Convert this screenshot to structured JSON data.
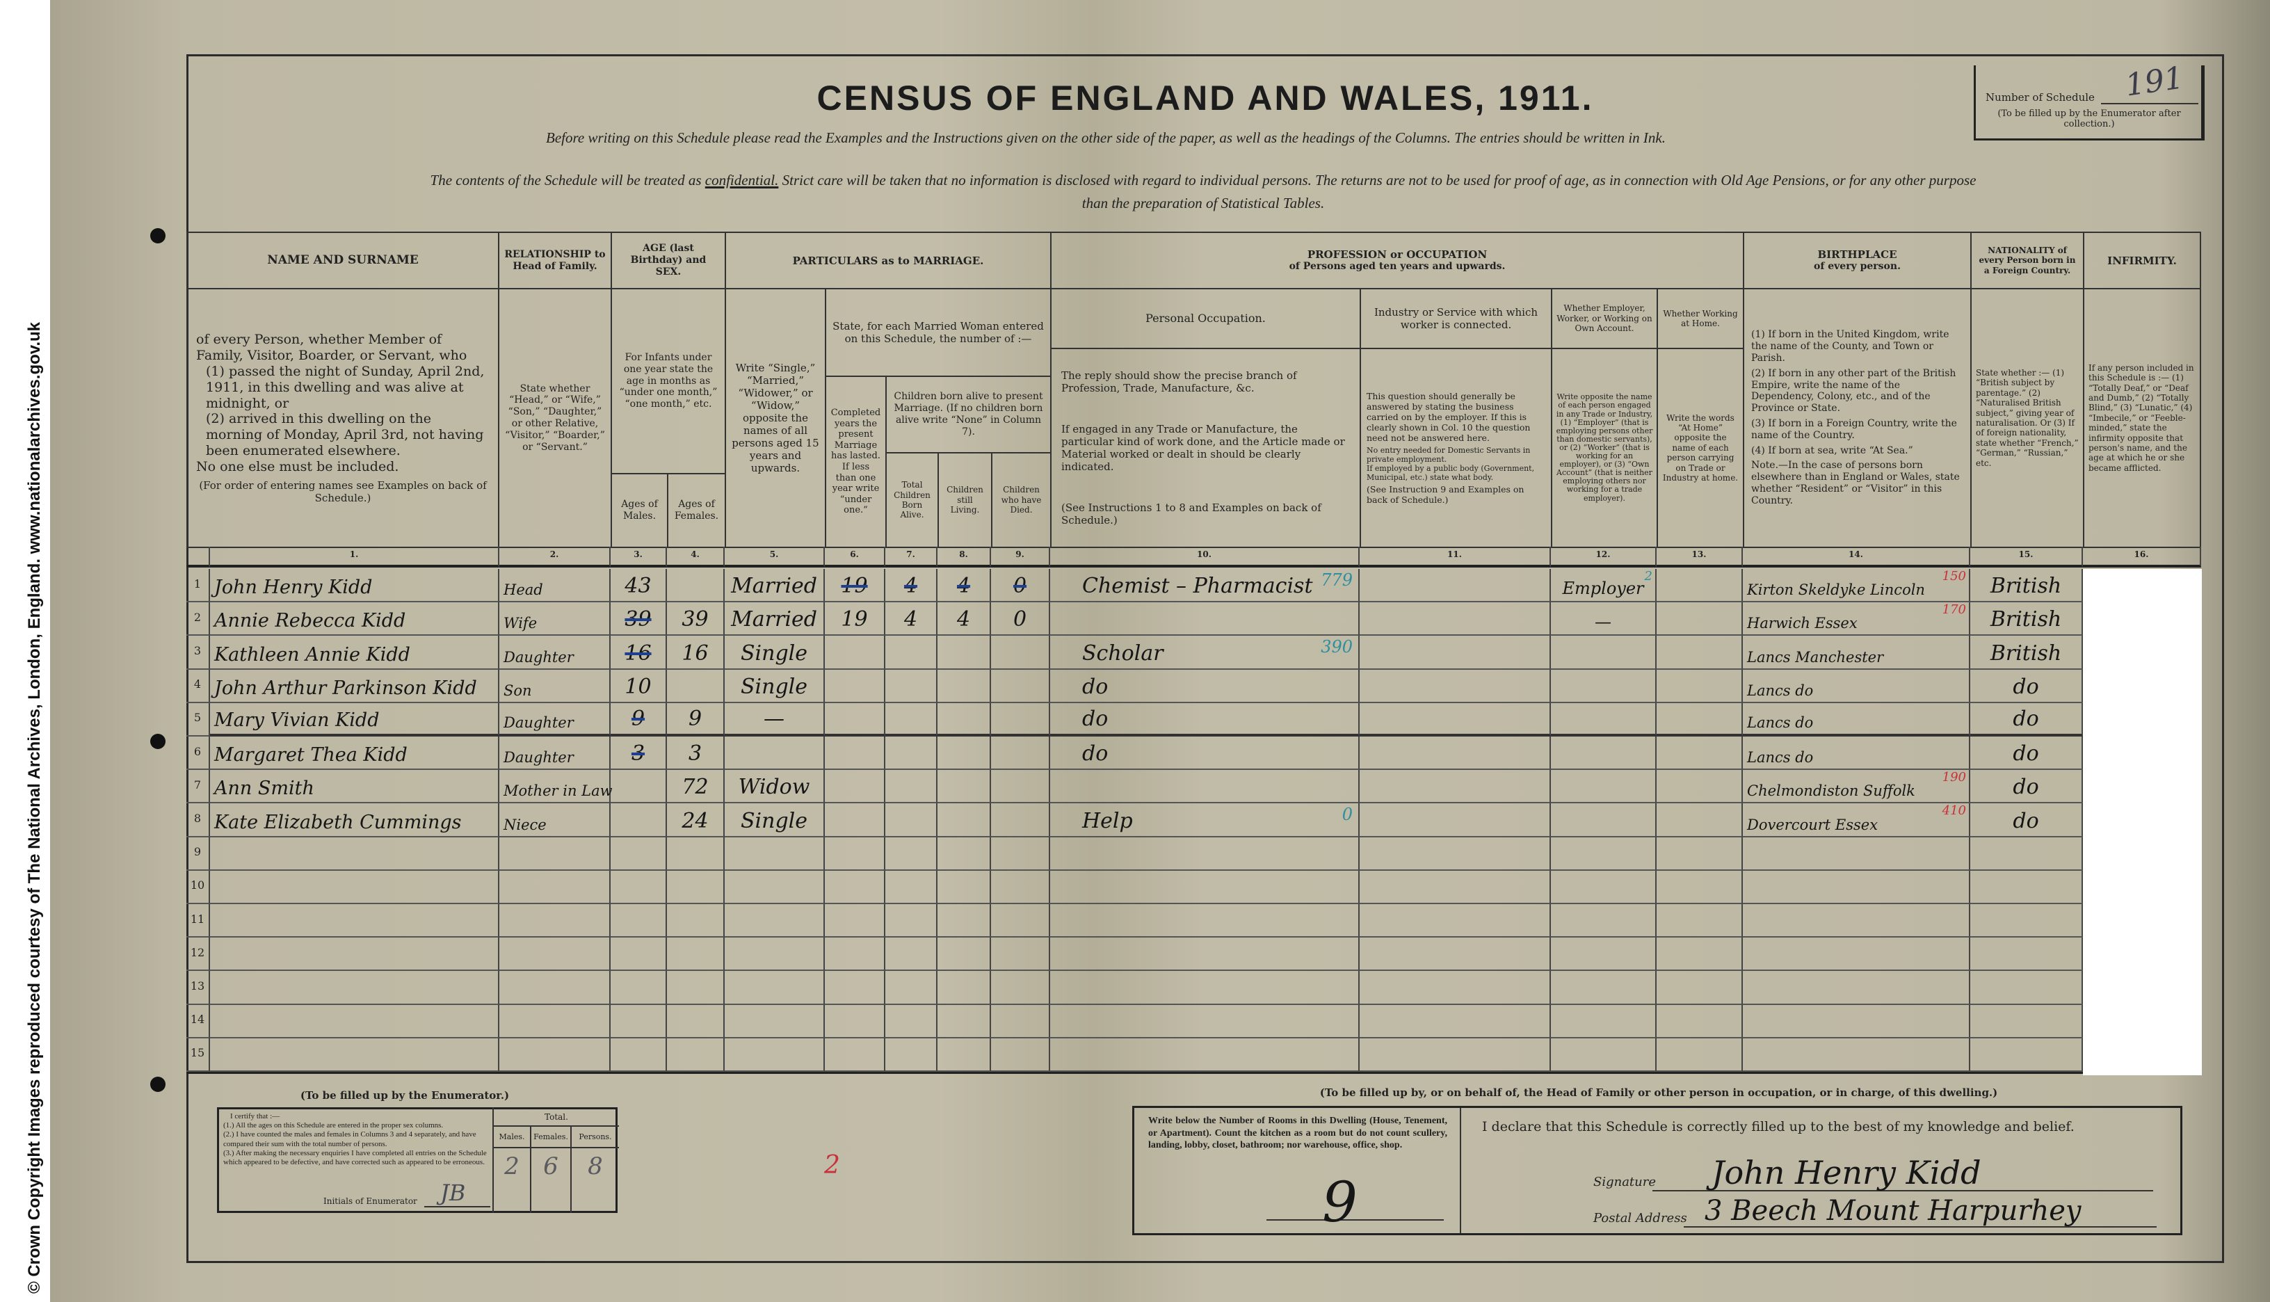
{
  "copyright": "© Crown Copyright Images reproduced courtesy of The National Archives, London, England. www.nationalarchives.gov.uk",
  "title": "CENSUS OF ENGLAND AND WALES, 1911.",
  "instructions": {
    "line1": "Before writing on this Schedule please read the Examples and the Instructions given on the other side of the paper, as well as the headings of the Columns.  The entries should be written in Ink.",
    "line2_pre": "The contents of the Schedule will be treated as ",
    "line2_underlined": "confidential.",
    "line2_post": "  Strict care will be taken that no information is disclosed with regard to individual persons.  The returns are not to be used for proof of age, as in connection with Old Age Pensions, or for any other purpose",
    "line3": "than the preparation of Statistical Tables."
  },
  "schedule_number": {
    "label": "Number of Schedule",
    "note": "(To be filled up by the Enumerator after collection.)",
    "value": "191"
  },
  "headers": {
    "name": {
      "title": "NAME AND SURNAME",
      "desc1": "of every Person, whether Member of Family, Visitor, Boarder, or Servant, who",
      "desc2": "(1) passed the night of Sunday, April 2nd, 1911, in this dwelling and was alive at midnight, or",
      "desc3": "(2) arrived in this dwelling on the morning of Monday, April 3rd, not having been enumerated elsewhere.",
      "desc4": "No one else must be included.",
      "desc5": "(For order of entering names see Examples on back of Schedule.)"
    },
    "relationship": {
      "title": "RELATIONSHIP to Head of Family.",
      "desc": "State whether “Head,” or “Wife,” “Son,” “Daughter,” or other Relative, “Visitor,” “Boarder,” or “Servant.”"
    },
    "age": {
      "title": "AGE (last Birthday) and SEX.",
      "desc": "For Infants under one year state the age in months as “under one month,” “one month,” etc.",
      "males": "Ages of Males.",
      "females": "Ages of Females."
    },
    "marriage": {
      "title": "PARTICULARS as to MARRIAGE.",
      "condition": "Write “Single,” “Married,” “Widower,” or “Widow,” opposite the names of all persons aged 15 years and upwards.",
      "state": "State, for each Married Woman entered on this Schedule, the number of :—",
      "years": "Completed years the present Marriage has lasted. If less than one year write “under one.”",
      "children": "Children born alive to present Marriage. (If no children born alive write “None” in Column 7).",
      "total": "Total Children Born Alive.",
      "living": "Children still Living.",
      "died": "Children who have Died."
    },
    "occupation": {
      "title": "PROFESSION or OCCUPATION",
      "subtitle": "of Persons aged ten years and upwards.",
      "personal_title": "Personal Occupation.",
      "personal_desc1": "The reply should show the precise branch of Profession, Trade, Manufacture, &c.",
      "personal_desc2": "If engaged in any Trade or Manufacture, the particular kind of work done, and the Article made or Material worked or dealt in should be clearly indicated.",
      "personal_desc3": "(See Instructions 1 to 8 and Examples on back of Schedule.)",
      "industry_title": "Industry or Service with which worker is connected.",
      "industry_desc1": "This question should generally be answered by stating the business carried on by the employer. If this is clearly shown in Col. 10 the question need not be answered here.",
      "industry_desc2": "No entry needed for Domestic Servants in private employment.",
      "industry_desc3": "If employed by a public body (Government, Municipal, etc.) state what body.",
      "industry_desc4": "(See Instruction 9 and Examples on back of Schedule.)",
      "employer_title": "Whether Employer, Worker, or Working on Own Account.",
      "employer_desc": "Write opposite the name of each person engaged in any Trade or Industry, (1) “Employer” (that is employing persons other than domestic servants), or (2) “Worker” (that is working for an employer), or (3) “Own Account” (that is neither employing others nor working for a trade employer).",
      "home_title": "Whether Working at Home.",
      "home_desc": "Write the words “At Home” opposite the name of each person carrying on Trade or Industry at home."
    },
    "birthplace": {
      "title": "BIRTHPLACE",
      "subtitle": "of every person.",
      "desc1": "(1) If born in the United Kingdom, write the name of the County, and Town or Parish.",
      "desc2": "(2) If born in any other part of the British Empire, write the name of the Dependency, Colony, etc., and of the Province or State.",
      "desc3": "(3) If born in a Foreign Country, write the name of the Country.",
      "desc4": "(4) If born at sea, write “At Sea.”",
      "desc5": "Note.—In the case of persons born elsewhere than in England or Wales, state whether “Resident” or “Visitor” in this Country."
    },
    "nationality": {
      "title": "NATIONALITY of every Person born in a Foreign Country.",
      "desc": "State whether :— (1) “British subject by parentage.” (2) “Naturalised British subject,” giving year of naturalisation. Or (3) If of foreign nationality, state whether “French,” “German,” “Russian,” etc."
    },
    "infirmity": {
      "title": "INFIRMITY.",
      "desc": "If any person included in this Schedule is :— (1) “Totally Deaf,” or “Deaf and Dumb,” (2) “Totally Blind,” (3) “Lunatic,” (4) “Imbecile,” or “Feeble-minded,” state the infirmity opposite that person's name, and the age at which he or she became afflicted."
    }
  },
  "column_numbers": [
    "1.",
    "2.",
    "3.",
    "4.",
    "5.",
    "6.",
    "7.",
    "8.",
    "9.",
    "10.",
    "11.",
    "12.",
    "13.",
    "14.",
    "15.",
    "16."
  ],
  "row_numbers": [
    "1",
    "2",
    "3",
    "4",
    "5",
    "6",
    "7",
    "8",
    "9",
    "10",
    "11",
    "12",
    "13",
    "14",
    "15"
  ],
  "rows": [
    {
      "name": "John Henry Kidd",
      "relationship": "Head",
      "age_male": "43",
      "age_female": "",
      "marital": "Married",
      "years_married": "19",
      "children_total": "4",
      "children_living": "4",
      "children_died": "0",
      "struck_marriage": true,
      "occupation": "Chemist – Pharmacist",
      "occupation_code": "779",
      "industry": "",
      "employer": "Employer",
      "employer_code": "2",
      "home": "",
      "birthplace": "Kirton Skeldyke Lincoln",
      "birthplace_code": "150",
      "nationality": "British"
    },
    {
      "name": "Annie Rebecca Kidd",
      "relationship": "Wife",
      "age_male": "39",
      "age_male_struck": true,
      "age_female": "39",
      "marital": "Married",
      "years_married": "19",
      "children_total": "4",
      "children_living": "4",
      "children_died": "0",
      "occupation": "",
      "industry": "",
      "employer": "—",
      "home": "",
      "birthplace": "Harwich Essex",
      "birthplace_code": "170",
      "nationality": "British"
    },
    {
      "name": "Kathleen Annie Kidd",
      "relationship": "Daughter",
      "age_male": "16",
      "age_male_struck": true,
      "age_female": "16",
      "marital": "Single",
      "occupation": "Scholar",
      "occupation_code": "390",
      "industry": "",
      "employer": "",
      "home": "",
      "birthplace": "Lancs Manchester",
      "nationality": "British"
    },
    {
      "name": "John Arthur Parkinson Kidd",
      "relationship": "Son",
      "age_male": "10",
      "age_female": "",
      "marital": "Single",
      "occupation": "do",
      "industry": "",
      "employer": "",
      "home": "",
      "birthplace": "Lancs do",
      "nationality": "do"
    },
    {
      "name": "Mary Vivian Kidd",
      "relationship": "Daughter",
      "age_male": "9",
      "age_male_struck": true,
      "age_female": "9",
      "marital": "—",
      "occupation": "do",
      "industry": "",
      "employer": "",
      "home": "",
      "birthplace": "Lancs do",
      "nationality": "do"
    },
    {
      "name": "Margaret Thea Kidd",
      "relationship": "Daughter",
      "age_male": "3",
      "age_male_struck": true,
      "age_female": "3",
      "marital": "",
      "occupation": "do",
      "industry": "",
      "employer": "",
      "home": "",
      "birthplace": "Lancs do",
      "nationality": "do"
    },
    {
      "name": "Ann Smith",
      "relationship": "Mother in Law",
      "age_male": "",
      "age_female": "72",
      "marital": "Widow",
      "occupation": "",
      "industry": "",
      "employer": "",
      "home": "",
      "birthplace": "Chelmondiston Suffolk",
      "birthplace_code": "190",
      "nationality": "do"
    },
    {
      "name": "Kate Elizabeth Cummings",
      "relationship": "Niece",
      "age_male": "",
      "age_female": "24",
      "marital": "Single",
      "occupation": "Help",
      "occupation_code": "0",
      "industry": "",
      "employer": "",
      "home": "",
      "birthplace": "Dovercourt Essex",
      "birthplace_code": "410",
      "nationality": "do"
    }
  ],
  "enumerator": {
    "caption": "(To be filled up by the Enumerator.)",
    "certify": "I certify that :—",
    "item1": "(1.) All the ages on this Schedule are entered in the proper sex columns.",
    "item2": "(2.) I have counted the males and females in Columns 3 and 4 separately, and have compared their sum with the total number of persons.",
    "item3": "(3.) After making the necessary enquiries I have completed all entries on the Schedule which appeared to be defective, and have corrected such as appeared to be erroneous.",
    "initials_label": "Initials of Enumerator",
    "initials": "JB",
    "total_label": "Total.",
    "males_label": "Males.",
    "females_label": "Females.",
    "persons_label": "Persons.",
    "males": "2",
    "females": "6",
    "persons": "8",
    "red_mark": "2"
  },
  "householder": {
    "caption": "(To be filled up by, or on behalf of, the Head of Family or other person in occupation, or in charge, of this dwelling.)",
    "rooms_instruction": "Write below the Number of Rooms in this Dwelling (House, Tenement, or Apartment). Count the kitchen as a room but do not count scullery, landing, lobby, closet, bathroom; nor warehouse, office, shop.",
    "rooms": "9",
    "declaration": "I declare that this Schedule is correctly filled up to the best of my knowledge and belief.",
    "signature_label": "Signature",
    "signature": "John Henry Kidd",
    "address_label": "Postal Address",
    "address": "3 Beech Mount Harpurhey"
  },
  "colors": {
    "paper": "#bdb8a3",
    "ink": "#161616",
    "blue_pencil": "#2f8f9e",
    "red_pencil": "#c8303a"
  }
}
